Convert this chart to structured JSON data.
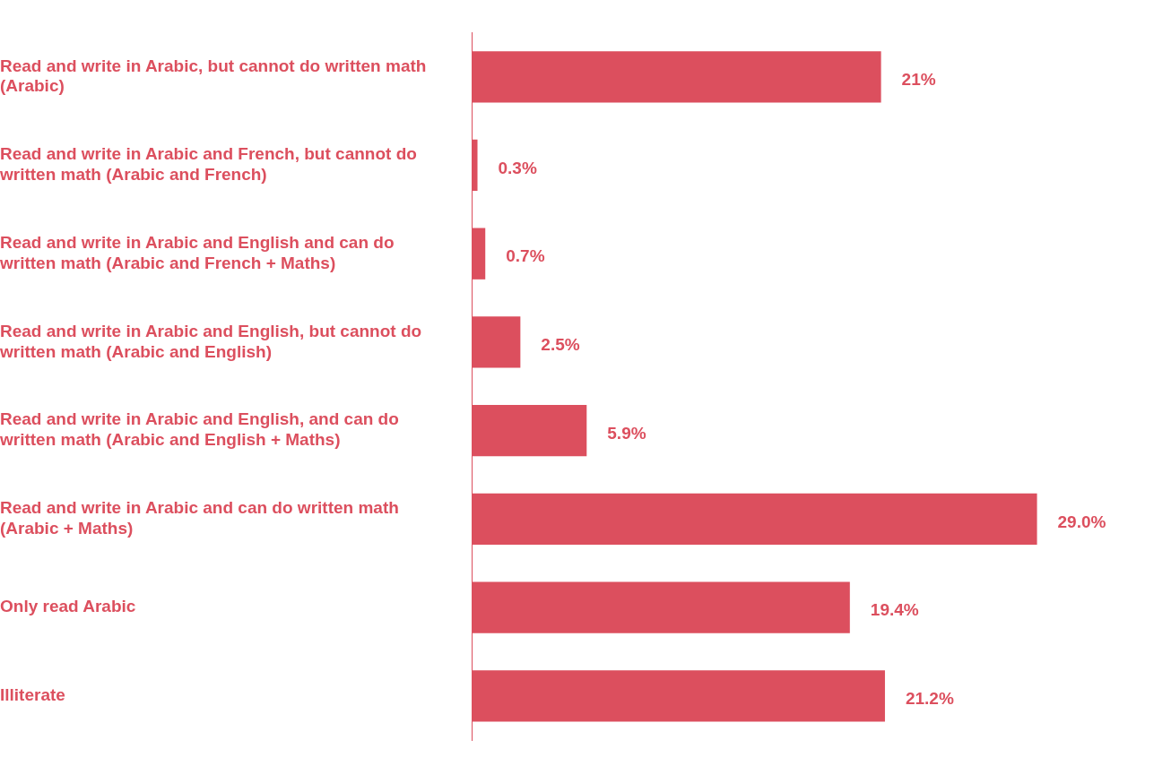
{
  "chart_data": {
    "type": "bar",
    "orientation": "horizontal",
    "categories": [
      "Read and write in Arabic, but cannot do written math (Arabic)",
      "Read and write in Arabic and French, but cannot do written math (Arabic and French)",
      "Read and write in Arabic and English and can do written math (Arabic and French + Maths)",
      "Read and write in Arabic and English, but cannot do written math (Arabic and English)",
      "Read and write in Arabic and English, and can do written math (Arabic and English + Maths)",
      "Read and write in Arabic and can do written math (Arabic + Maths)",
      "Only read Arabic",
      "Illiterate"
    ],
    "values": [
      21,
      0.3,
      0.7,
      2.5,
      5.9,
      29.0,
      19.4,
      21.2
    ],
    "value_labels": [
      "21%",
      "0.3%",
      "0.7%",
      "2.5%",
      "5.9%",
      "29.0%",
      "19.4%",
      "21.2%"
    ],
    "color": "#dc4f5e",
    "grid": false,
    "legend": false,
    "tick_labels": "y"
  }
}
